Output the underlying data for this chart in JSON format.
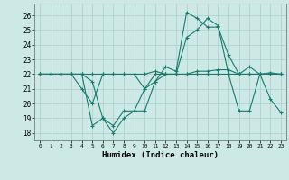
{
  "xlabel": "Humidex (Indice chaleur)",
  "ylabel": "",
  "background_color": "#cce9e5",
  "grid_color": "#aacfcc",
  "line_color": "#1a7a6e",
  "xlim": [
    -0.5,
    23.5
  ],
  "ylim": [
    17.5,
    26.8
  ],
  "yticks": [
    18,
    19,
    20,
    21,
    22,
    23,
    24,
    25,
    26
  ],
  "xticks": [
    0,
    1,
    2,
    3,
    4,
    5,
    6,
    7,
    8,
    9,
    10,
    11,
    12,
    13,
    14,
    15,
    16,
    17,
    18,
    19,
    20,
    21,
    22,
    23
  ],
  "series": [
    [
      22,
      22,
      22,
      22,
      22,
      22,
      22,
      22,
      22,
      22,
      22,
      22.2,
      22,
      22,
      22,
      22.2,
      22.2,
      22.3,
      22.3,
      22,
      22,
      22,
      22.1,
      22
    ],
    [
      22,
      22,
      22,
      22,
      22,
      21.5,
      19.0,
      18.5,
      19.5,
      19.5,
      21.0,
      21.5,
      22.5,
      22.2,
      26.2,
      25.8,
      25.2,
      25.2,
      23.3,
      22.0,
      22.5,
      22.0,
      20.3,
      19.4
    ],
    [
      22,
      22,
      22,
      22,
      21.0,
      20.0,
      22.0,
      22.0,
      22.0,
      22.0,
      21.0,
      22.0,
      22.0,
      22.0,
      22.0,
      22.0,
      22.0,
      22.0,
      22.0,
      22.0,
      22.0,
      22.0,
      22.0,
      22.0
    ],
    [
      22,
      22,
      22,
      22,
      22,
      18.5,
      19.0,
      18.0,
      19.0,
      19.5,
      19.5,
      21.5,
      22.0,
      22.0,
      24.5,
      25.0,
      25.8,
      25.3,
      22.0,
      19.5,
      19.5,
      22.0,
      22.0,
      22.0
    ]
  ]
}
